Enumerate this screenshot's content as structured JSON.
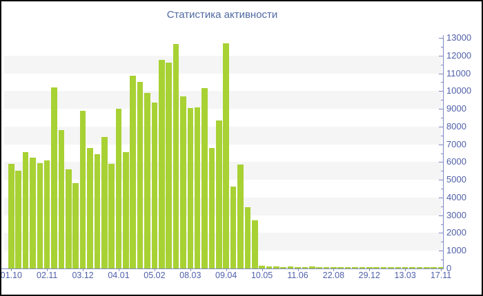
{
  "title": "Статистика активности",
  "colors": {
    "bar": "#a8d134",
    "title_text": "#4e69a2",
    "axis_line": "#7c86c0",
    "tick_label": "#4f5fa8",
    "stripe_band": "#f5f5f5",
    "background": "#ffffff",
    "frame_border": "#0a0a0a"
  },
  "chart_data": {
    "type": "bar",
    "title": "Статистика активности",
    "x_tick_labels": [
      "01.10",
      "02.11",
      "03.12",
      "04.01",
      "05.02",
      "08.03",
      "09.04",
      "10.05",
      "11.06",
      "22.08",
      "29.12",
      "13.03",
      "17.11"
    ],
    "x_tick_every_n_bars": 5,
    "values": [
      5900,
      5500,
      6550,
      6250,
      5950,
      6100,
      10200,
      7800,
      5600,
      4800,
      8900,
      6800,
      6450,
      7400,
      5900,
      9000,
      6550,
      10850,
      10500,
      9900,
      9350,
      11750,
      11600,
      12650,
      9700,
      9050,
      9100,
      10150,
      6800,
      8350,
      12700,
      4600,
      5850,
      3450,
      2700,
      150,
      100,
      120,
      80,
      100,
      70,
      90,
      110,
      70,
      80,
      90,
      60,
      80,
      70,
      90,
      60,
      70,
      80,
      60,
      90,
      70,
      60,
      80,
      60,
      70,
      80
    ],
    "ylim": [
      0,
      13000
    ],
    "y_tick_step": 1000,
    "y_minor_tick_step": 500,
    "y_tick_labels": [
      "0",
      "1000",
      "2000",
      "3000",
      "4000",
      "5000",
      "6000",
      "7000",
      "8000",
      "9000",
      "10000",
      "11000",
      "12000",
      "13000"
    ],
    "y_axis_side": "right",
    "grid": "alternating horizontal bands (odd thousands shaded)",
    "legend": null
  }
}
